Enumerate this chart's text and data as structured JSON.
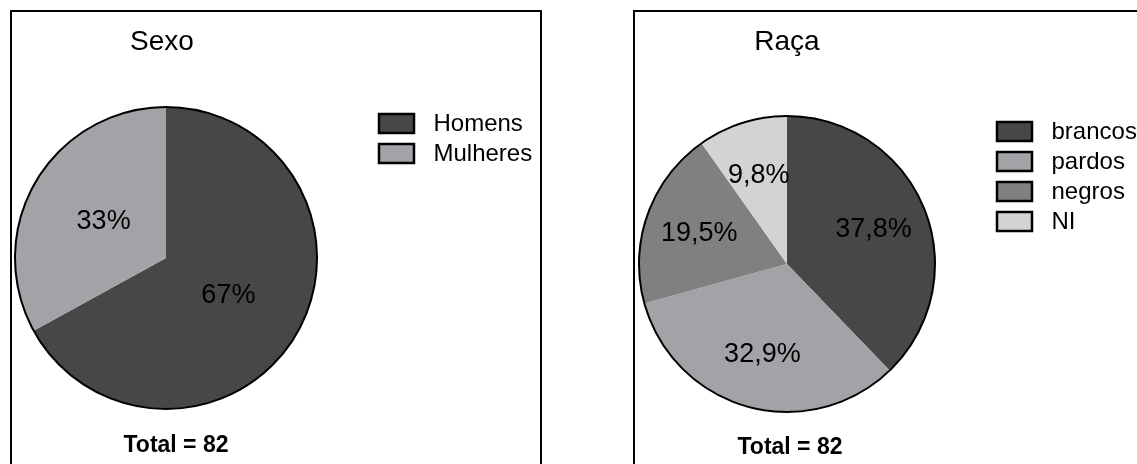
{
  "chart_data": [
    {
      "type": "pie",
      "title": "Sexo",
      "categories": [
        "Homens",
        "Mulheres"
      ],
      "values": [
        67,
        33
      ],
      "colors": [
        "#474747",
        "#a3a2a7"
      ],
      "value_labels": [
        "67%",
        "33%"
      ],
      "legend": "right",
      "annotations": [
        "Total = 82"
      ]
    },
    {
      "type": "pie",
      "title": "Raça",
      "categories": [
        "brancos",
        "pardos",
        "negros",
        "NI"
      ],
      "values": [
        37.8,
        32.9,
        19.5,
        9.8
      ],
      "colors": [
        "#474747",
        "#a3a2a7",
        "#808080",
        "#d3d3d3"
      ],
      "value_labels": [
        "37,8%",
        "32,9%",
        "19,5%",
        "9,8%"
      ],
      "legend": "right",
      "annotations": [
        "Total = 82"
      ]
    }
  ]
}
